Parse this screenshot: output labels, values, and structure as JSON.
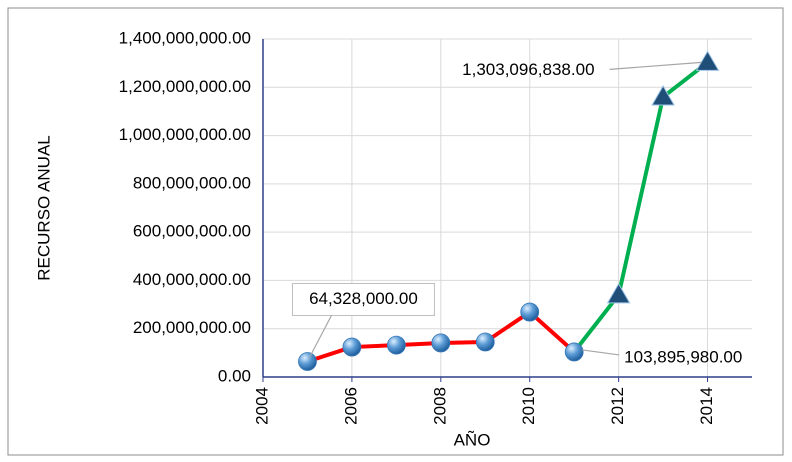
{
  "chart_data": {
    "type": "line",
    "x_label": "AÑO",
    "y_label": "RECURSO ANUAL",
    "xlim": [
      2004,
      2015
    ],
    "xticks": [
      2004,
      2006,
      2008,
      2010,
      2012,
      2014
    ],
    "ylim": [
      0,
      1400000000
    ],
    "yticks": [
      {
        "value": 0,
        "label": "0.00"
      },
      {
        "value": 200000000,
        "label": "200,000,000.00"
      },
      {
        "value": 400000000,
        "label": "400,000,000.00"
      },
      {
        "value": 600000000,
        "label": "600,000,000.00"
      },
      {
        "value": 800000000,
        "label": "800,000,000.00"
      },
      {
        "value": 1000000000,
        "label": "1,000,000,000.00"
      },
      {
        "value": 1200000000,
        "label": "1,200,000,000.00"
      },
      {
        "value": 1400000000,
        "label": "1,400,000,000.00"
      }
    ],
    "grid": true,
    "series": [
      {
        "color": "#ff0000",
        "marker": "circle",
        "marker_color": "#5b9bd5",
        "x": [
          2005,
          2006,
          2007,
          2008,
          2009,
          2010,
          2011
        ],
        "values": [
          64328000,
          124000000,
          132000000,
          141000000,
          145000000,
          269000000,
          103895980
        ],
        "value_labels": [
          "64,328,000.00",
          null,
          null,
          null,
          null,
          null,
          "103,895,980.00"
        ]
      },
      {
        "color": "#00b050",
        "marker": "triangle",
        "marker_color": "#1f4e79",
        "x": [
          2011,
          2012,
          2013,
          2014
        ],
        "values": [
          103895980,
          340000000,
          1160000000,
          1303096838
        ],
        "value_labels": [
          null,
          null,
          null,
          "1,303,096,838.00"
        ]
      }
    ]
  }
}
